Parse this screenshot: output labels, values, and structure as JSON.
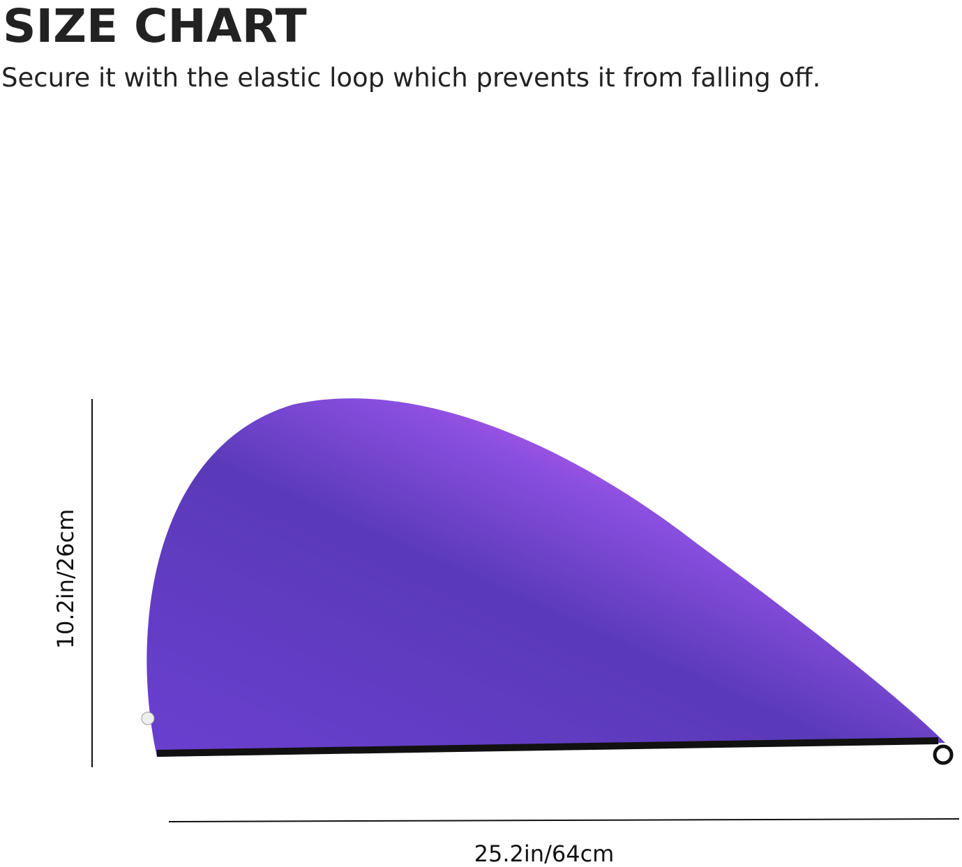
{
  "header": {
    "title": "SIZE CHART",
    "subtitle": "Secure it with the elastic loop which prevents it from falling off."
  },
  "dimensions": {
    "height": "10.2in/26cm",
    "width": "25.2in/64cm"
  }
}
